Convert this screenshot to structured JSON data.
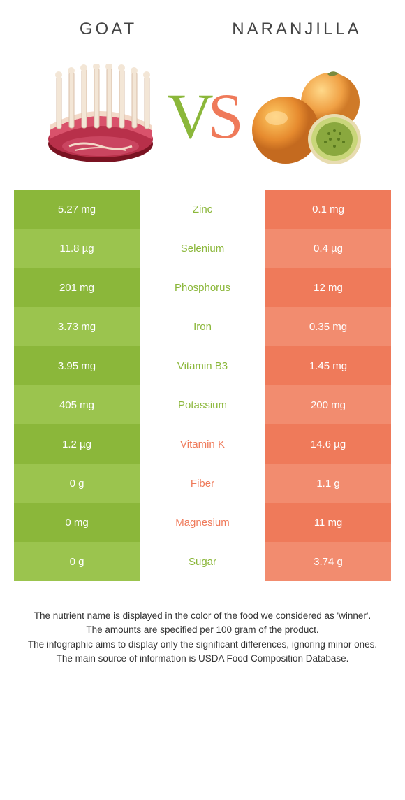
{
  "colors": {
    "green_dark": "#8bb73a",
    "green_light": "#9bc44e",
    "orange_dark": "#ef7a5a",
    "orange_light": "#f28c6f",
    "text_green": "#8bb73a",
    "text_orange": "#ef7a5a"
  },
  "titles": {
    "left": "GOAT",
    "right": "NARANJILLA"
  },
  "vs": {
    "v": "V",
    "s": "S"
  },
  "rows": [
    {
      "nutrient": "Zinc",
      "left": "5.27 mg",
      "right": "0.1 mg",
      "winner": "left"
    },
    {
      "nutrient": "Selenium",
      "left": "11.8 µg",
      "right": "0.4 µg",
      "winner": "left"
    },
    {
      "nutrient": "Phosphorus",
      "left": "201 mg",
      "right": "12 mg",
      "winner": "left"
    },
    {
      "nutrient": "Iron",
      "left": "3.73 mg",
      "right": "0.35 mg",
      "winner": "left"
    },
    {
      "nutrient": "Vitamin B3",
      "left": "3.95 mg",
      "right": "1.45 mg",
      "winner": "left"
    },
    {
      "nutrient": "Potassium",
      "left": "405 mg",
      "right": "200 mg",
      "winner": "left"
    },
    {
      "nutrient": "Vitamin K",
      "left": "1.2 µg",
      "right": "14.6 µg",
      "winner": "right"
    },
    {
      "nutrient": "Fiber",
      "left": "0 g",
      "right": "1.1 g",
      "winner": "right"
    },
    {
      "nutrient": "Magnesium",
      "left": "0 mg",
      "right": "11 mg",
      "winner": "right"
    },
    {
      "nutrient": "Sugar",
      "left": "0 g",
      "right": "3.74 g",
      "winner": "left"
    }
  ],
  "note": {
    "line1": "The nutrient name is displayed in the color of the food we considered as 'winner'.",
    "line2": "The amounts are specified per 100 gram of the product.",
    "line3": "The infographic aims to display only the significant differences, ignoring minor ones.",
    "line4": "The main source of information is USDA Food Composition Database."
  }
}
